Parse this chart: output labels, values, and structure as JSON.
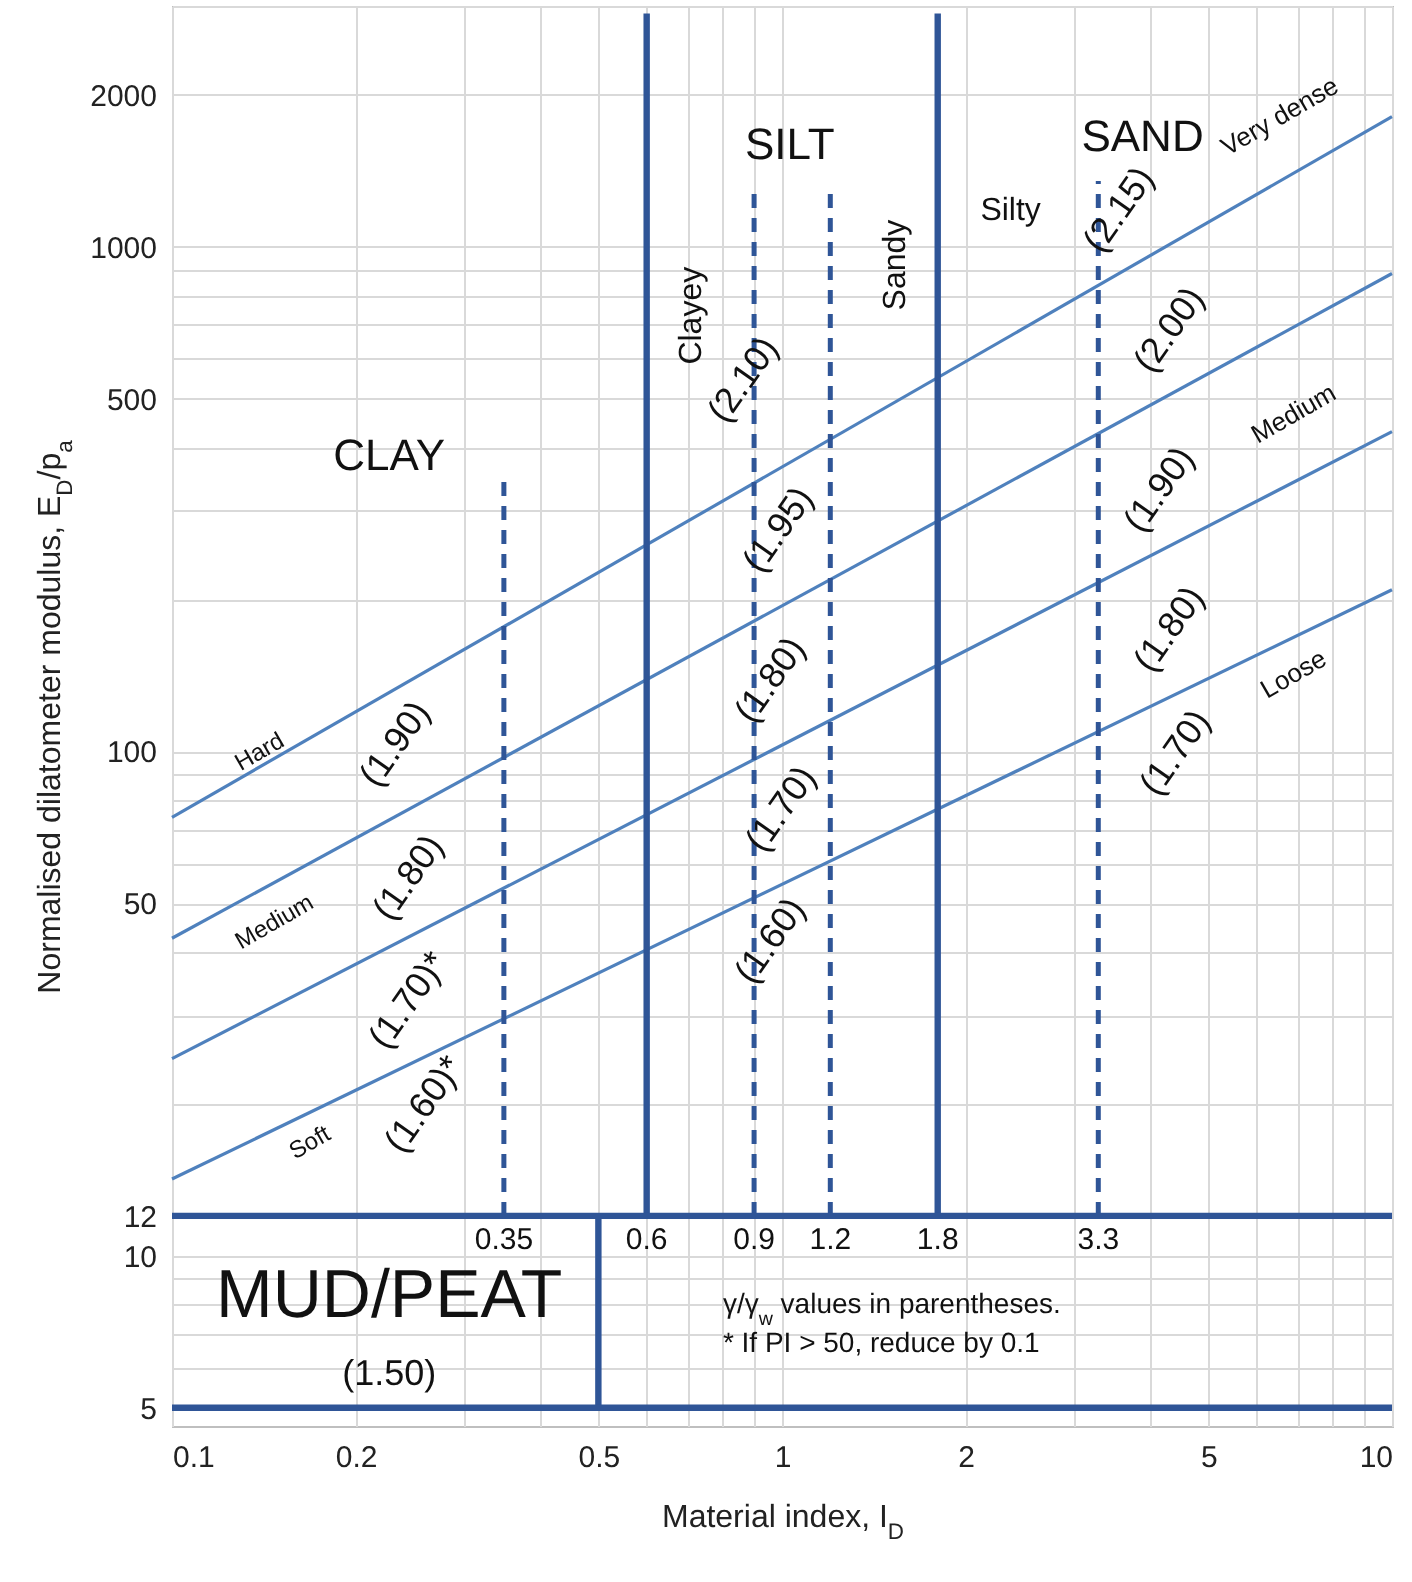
{
  "chart_data": {
    "type": "line",
    "xlabel": "Material index, I$_{D}$",
    "ylabel": "Normalised dilatometer modulus, E$_{D}$/p$_{a}$",
    "log": "xy",
    "grid": true,
    "xlim": [
      0.1,
      10
    ],
    "ylim": [
      4.6,
      3000
    ],
    "xticks": [
      0.1,
      0.2,
      {
        "value": 0.3,
        "label": null
      },
      {
        "value": 0.4,
        "label": null
      },
      0.5,
      {
        "value": 0.6,
        "label": null
      },
      {
        "value": 0.7,
        "label": null
      },
      {
        "value": 0.8,
        "label": null
      },
      {
        "value": 0.9,
        "label": null
      },
      1,
      2,
      {
        "value": 3,
        "label": null
      },
      {
        "value": 4,
        "label": null
      },
      5,
      {
        "value": 6,
        "label": null
      },
      {
        "value": 7,
        "label": null
      },
      {
        "value": 8,
        "label": null
      },
      {
        "value": 9,
        "label": null
      },
      10
    ],
    "yticks": [
      5,
      {
        "value": 6,
        "label": null
      },
      {
        "value": 7,
        "label": null
      },
      {
        "value": 8,
        "label": null
      },
      {
        "value": 9,
        "label": null
      },
      10,
      12,
      {
        "value": 20,
        "label": null
      },
      {
        "value": 30,
        "label": null
      },
      {
        "value": 40,
        "label": null
      },
      50,
      {
        "value": 60,
        "label": null
      },
      {
        "value": 70,
        "label": null
      },
      {
        "value": 80,
        "label": null
      },
      {
        "value": 90,
        "label": null
      },
      100,
      {
        "value": 200,
        "label": null
      },
      {
        "value": 300,
        "label": null
      },
      {
        "value": 400,
        "label": null
      },
      500,
      {
        "value": 600,
        "label": null
      },
      {
        "value": 700,
        "label": null
      },
      {
        "value": 800,
        "label": null
      },
      {
        "value": 900,
        "label": null
      },
      1000,
      2000,
      {
        "value": 3000,
        "label": null
      }
    ],
    "series": [
      {
        "type": "line",
        "color": "#4f81bd",
        "line_style": "solid",
        "x": [
          0.1,
          10
        ],
        "values": [
          74,
          1810
        ]
      },
      {
        "type": "line",
        "color": "#4f81bd",
        "line_style": "solid",
        "x": [
          0.1,
          10
        ],
        "values": [
          42.6,
          885
        ]
      },
      {
        "type": "line",
        "color": "#4f81bd",
        "line_style": "solid",
        "x": [
          0.1,
          10
        ],
        "values": [
          24.6,
          430
        ]
      },
      {
        "type": "line",
        "color": "#4f81bd",
        "line_style": "solid",
        "x": [
          0.1,
          10
        ],
        "values": [
          14.2,
          209
        ]
      },
      {
        "type": "line",
        "color": "#2f5597",
        "line_style": "solid",
        "x": [
          0.6,
          0.6
        ],
        "values": [
          12,
          2900
        ]
      },
      {
        "type": "line",
        "color": "#2f5597",
        "line_style": "solid",
        "x": [
          1.8,
          1.8
        ],
        "values": [
          12,
          2900
        ]
      },
      {
        "type": "line",
        "color": "#2f5597",
        "line_style": "solid",
        "x": [
          0.5,
          0.5
        ],
        "values": [
          5,
          12
        ]
      },
      {
        "type": "line",
        "color": "#2f5597",
        "line_style": "dashed",
        "x": [
          0.35,
          0.35
        ],
        "values": [
          12,
          350
        ]
      },
      {
        "type": "line",
        "color": "#2f5597",
        "line_style": "dashed",
        "x": [
          0.9,
          0.9
        ],
        "values": [
          12,
          1330
        ]
      },
      {
        "type": "line",
        "color": "#2f5597",
        "line_style": "dashed",
        "x": [
          1.2,
          1.2
        ],
        "values": [
          12,
          1330
        ]
      },
      {
        "type": "line",
        "color": "#2f5597",
        "line_style": "dashed",
        "x": [
          3.3,
          3.3
        ],
        "values": [
          12,
          1350
        ]
      },
      {
        "type": "line",
        "color": "#2f5597",
        "line_style": "solid",
        "x": [
          0.1,
          10
        ],
        "values": [
          12,
          12
        ]
      },
      {
        "type": "line",
        "color": "#2f5597",
        "line_style": "solid",
        "x": [
          0.1,
          10
        ],
        "values": [
          5,
          5
        ]
      }
    ],
    "annotations": [
      "CLAY",
      "SILT",
      "SAND",
      "Clayey",
      "Sandy",
      "Silty",
      "Hard",
      "Medium",
      "Soft",
      "Very dense",
      "Medium",
      "Loose",
      "(1.90)",
      "(1.80)",
      "(1.70)*",
      "(1.60)*",
      "(2.10)",
      "(1.95)",
      "(1.80)",
      "(1.70)",
      "(1.60)",
      "(2.15)",
      "(2.00)",
      "(1.90)",
      "(1.80)",
      "(1.70)",
      "MUD/PEAT",
      "(1.50)",
      "0.35",
      "0.6",
      "0.9",
      "1.2",
      "1.8",
      "3.3",
      "γ/γ$_{w}$ values in parentheses.",
      "* If PI > 50, reduce by 0.1"
    ]
  }
}
